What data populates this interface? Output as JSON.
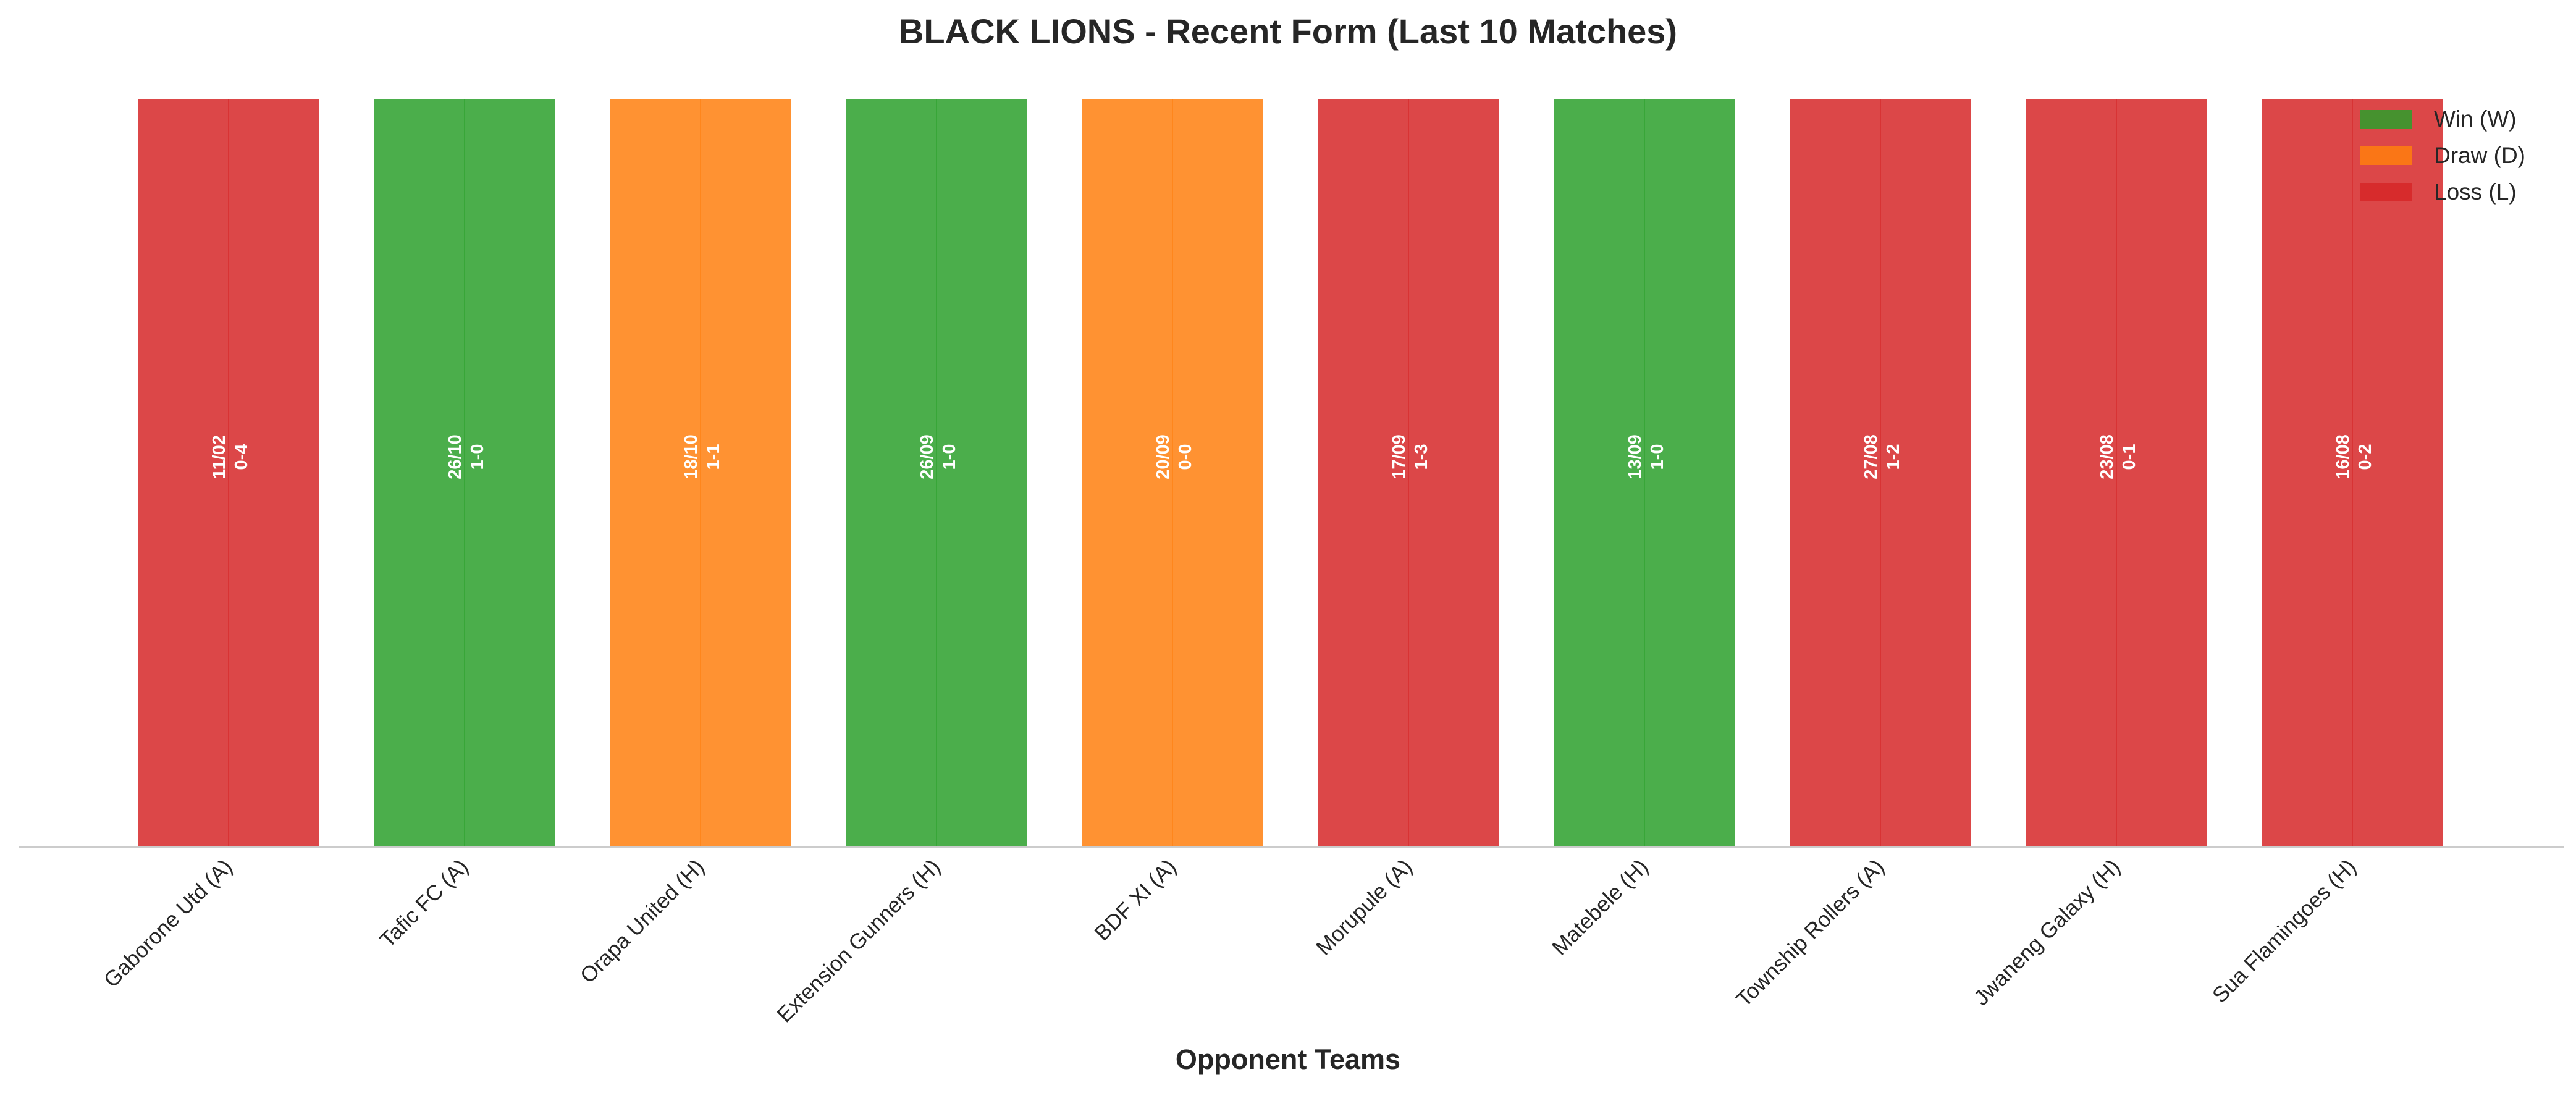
{
  "chart_data": {
    "type": "bar",
    "title": "BLACK LIONS - Recent Form (Last 10 Matches)",
    "xlabel": "Opponent Teams",
    "ylabel": "",
    "categories": [
      "Gaborone Utd (A)",
      "Tafic FC (A)",
      "Orapa United (H)",
      "Extension Gunners (H)",
      "BDF XI (A)",
      "Morupule (A)",
      "Matebele (H)",
      "Township Rollers (A)",
      "Jwaneng Galaxy (H)",
      "Sua Flamingoes (H)"
    ],
    "values": [
      1,
      1,
      1,
      1,
      1,
      1,
      1,
      1,
      1,
      1
    ],
    "results": [
      "L",
      "W",
      "D",
      "W",
      "D",
      "L",
      "W",
      "L",
      "L",
      "L"
    ],
    "dates": [
      "11/02",
      "26/10",
      "18/10",
      "26/09",
      "20/09",
      "17/09",
      "13/09",
      "27/08",
      "23/08",
      "16/08"
    ],
    "scores": [
      "0-4",
      "1-0",
      "1-1",
      "1-0",
      "0-0",
      "1-3",
      "1-0",
      "1-2",
      "0-1",
      "0-2"
    ],
    "ylim": [
      0,
      1.05
    ],
    "grid": false,
    "legend": {
      "placement": "top-right",
      "entries": [
        {
          "key": "W",
          "label": "Win (W)",
          "color": "#2ca02c"
        },
        {
          "key": "D",
          "label": "Draw (D)",
          "color": "#ff7f0e"
        },
        {
          "key": "L",
          "label": "Loss (L)",
          "color": "#d62728"
        }
      ]
    },
    "colors": {
      "W": "#2ca02c",
      "D": "#ff7f0e",
      "L": "#d62728"
    }
  }
}
